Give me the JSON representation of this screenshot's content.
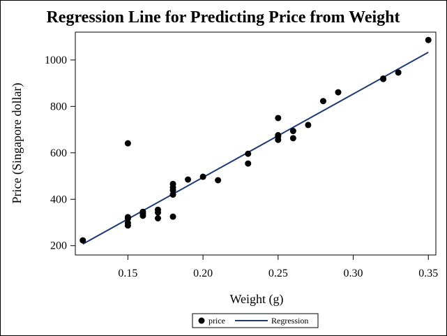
{
  "chart_data": {
    "type": "scatter",
    "title": "Regression Line for Predicting Price from Weight",
    "xlabel": "Weight (g)",
    "ylabel": "Price (Singapore dollar)",
    "xlim": [
      0.115,
      0.355
    ],
    "ylim": [
      160,
      1120
    ],
    "xticks": [
      0.15,
      0.2,
      0.25,
      0.3,
      0.35
    ],
    "xtick_labels": [
      "0.15",
      "0.20",
      "0.25",
      "0.30",
      "0.35"
    ],
    "yticks": [
      200,
      400,
      600,
      800,
      1000
    ],
    "ytick_labels": [
      "200",
      "400",
      "600",
      "800",
      "1000"
    ],
    "grid": false,
    "legend_position": "bottom-center",
    "series": [
      {
        "name": "price",
        "kind": "scatter",
        "color": "#000000",
        "points": [
          [
            0.12,
            223
          ],
          [
            0.15,
            641
          ],
          [
            0.15,
            323
          ],
          [
            0.15,
            317
          ],
          [
            0.15,
            298
          ],
          [
            0.15,
            287
          ],
          [
            0.16,
            346
          ],
          [
            0.16,
            338
          ],
          [
            0.16,
            329
          ],
          [
            0.17,
            355
          ],
          [
            0.17,
            343
          ],
          [
            0.17,
            318
          ],
          [
            0.18,
            466
          ],
          [
            0.18,
            451
          ],
          [
            0.18,
            439
          ],
          [
            0.18,
            420
          ],
          [
            0.18,
            325
          ],
          [
            0.19,
            485
          ],
          [
            0.2,
            497
          ],
          [
            0.21,
            482
          ],
          [
            0.23,
            596
          ],
          [
            0.23,
            554
          ],
          [
            0.25,
            750
          ],
          [
            0.25,
            676
          ],
          [
            0.25,
            670
          ],
          [
            0.25,
            656
          ],
          [
            0.26,
            694
          ],
          [
            0.26,
            663
          ],
          [
            0.27,
            720
          ],
          [
            0.28,
            823
          ],
          [
            0.29,
            861
          ],
          [
            0.32,
            920
          ],
          [
            0.32,
            918
          ],
          [
            0.33,
            946
          ],
          [
            0.35,
            1086
          ]
        ]
      },
      {
        "name": "Regression",
        "kind": "line",
        "color": "#1f3b73",
        "points": [
          [
            0.12,
            207
          ],
          [
            0.35,
            1033
          ]
        ]
      }
    ]
  }
}
